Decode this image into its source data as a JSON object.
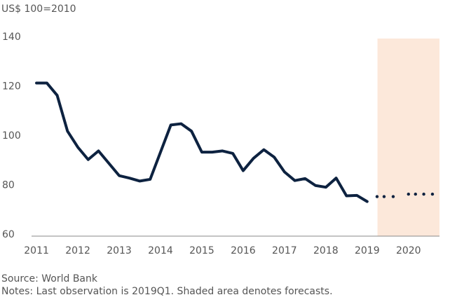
{
  "chart_data": {
    "type": "line",
    "unit_label": "US$ 100=2010",
    "source": "Source: World Bank",
    "notes": "Notes: Last observation is 2019Q1. Shaded area denotes forecasts.",
    "xlim": [
      2010.88,
      2020.75
    ],
    "xticks": [
      2011,
      2012,
      2013,
      2014,
      2015,
      2016,
      2017,
      2018,
      2019,
      2020
    ],
    "ylim": [
      60,
      140
    ],
    "yticks": [
      60,
      80,
      100,
      120,
      140
    ],
    "shaded_xrange": [
      2019.25,
      2020.75
    ],
    "shade_color": "#fce8da",
    "series": [
      {
        "color": "#0d2240",
        "style": "solid",
        "x": [
          2011,
          2011.25,
          2011.5,
          2011.75,
          2012,
          2012.25,
          2012.5,
          2012.75,
          2013,
          2013.25,
          2013.5,
          2013.75,
          2014,
          2014.25,
          2014.5,
          2014.75,
          2015,
          2015.25,
          2015.5,
          2015.75,
          2016,
          2016.25,
          2016.5,
          2016.75,
          2017,
          2017.25,
          2017.5,
          2017.75,
          2018,
          2018.25,
          2018.5,
          2018.75,
          2019
        ],
        "values": [
          122,
          122,
          117,
          102.5,
          96,
          91,
          94.5,
          89.5,
          84.5,
          83.5,
          82.3,
          83,
          94,
          105,
          105.5,
          102.5,
          94,
          94,
          94.5,
          93.5,
          86.5,
          91.5,
          95,
          92,
          86,
          82.5,
          83.3,
          80.5,
          79.8,
          83.5,
          76.3,
          76.5,
          74
        ]
      },
      {
        "color": "#0d2240",
        "style": "dotted",
        "x": [
          2019.24,
          2019.41,
          2019.63,
          2020.0,
          2020.17,
          2020.37,
          2020.58
        ],
        "values": [
          76,
          76,
          76,
          77,
          77,
          77,
          77
        ]
      }
    ]
  }
}
